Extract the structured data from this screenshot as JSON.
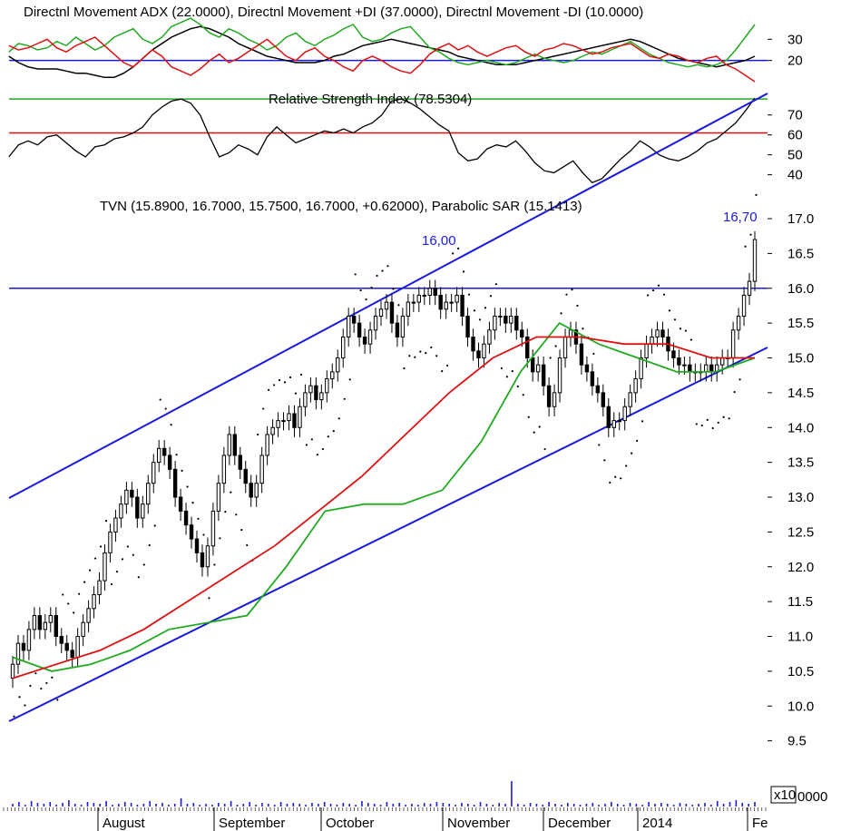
{
  "chart_data": [
    {
      "type": "line",
      "title": "Directnl Movement ADX (22.0000), Directnl Movement +DI (37.0000), Directnl Movement -DI (10.0000)",
      "ylim": [
        10,
        40
      ],
      "yticks": [
        20,
        30
      ],
      "reference_lines": [
        20
      ],
      "colors": {
        "adx": "#000000",
        "plus_di": "#22aa22",
        "minus_di": "#dd1111",
        "ref": "#1a1adc"
      },
      "series": [
        {
          "name": "ADX",
          "values": [
            22,
            19,
            17,
            16,
            16,
            16,
            15,
            14,
            14,
            13,
            12,
            12,
            14,
            17,
            21,
            25,
            28,
            31,
            33,
            35,
            36,
            35,
            33,
            31,
            28,
            26,
            24,
            22,
            21,
            20,
            19,
            19,
            19,
            20,
            22,
            23,
            25,
            27,
            28,
            29,
            30,
            29,
            28,
            27,
            26,
            25,
            24,
            22,
            21,
            20,
            19,
            18,
            18,
            18,
            19,
            20,
            21,
            22,
            23,
            24,
            25,
            26,
            27,
            28,
            29,
            30,
            29,
            27,
            25,
            23,
            21,
            20,
            19,
            18,
            17,
            18,
            19,
            20,
            22
          ]
        },
        {
          "name": "+DI",
          "values": [
            24,
            28,
            27,
            25,
            26,
            29,
            27,
            31,
            28,
            25,
            27,
            31,
            33,
            35,
            30,
            28,
            31,
            36,
            38,
            40,
            37,
            33,
            31,
            35,
            33,
            30,
            28,
            25,
            27,
            31,
            33,
            29,
            27,
            30,
            32,
            35,
            37,
            31,
            29,
            30,
            33,
            35,
            36,
            31,
            26,
            24,
            21,
            19,
            18,
            19,
            20,
            19,
            18,
            19,
            21,
            23,
            21,
            20,
            19,
            20,
            22,
            24,
            23,
            25,
            27,
            29,
            26,
            23,
            21,
            19,
            18,
            17,
            18,
            17,
            18,
            20,
            25,
            31,
            37
          ]
        },
        {
          "name": "-DI",
          "values": [
            27,
            25,
            26,
            28,
            30,
            26,
            24,
            27,
            29,
            31,
            27,
            23,
            19,
            17,
            21,
            25,
            22,
            17,
            15,
            13,
            16,
            20,
            23,
            19,
            21,
            24,
            27,
            30,
            26,
            22,
            20,
            24,
            26,
            22,
            20,
            17,
            15,
            20,
            22,
            20,
            17,
            15,
            14,
            18,
            23,
            26,
            28,
            25,
            27,
            24,
            22,
            24,
            26,
            27,
            24,
            22,
            25,
            26,
            28,
            27,
            25,
            23,
            24,
            26,
            27,
            28,
            25,
            22,
            21,
            23,
            22,
            20,
            19,
            21,
            22,
            18,
            16,
            13,
            10
          ]
        }
      ]
    },
    {
      "type": "line",
      "title": "Relative Strength Index (78.5304)",
      "ylim": [
        33,
        84
      ],
      "yticks": [
        40,
        50,
        60,
        70
      ],
      "reference_lines": [
        {
          "value": 78,
          "color": "#22aa22"
        },
        {
          "value": 61,
          "color": "#dd1111"
        }
      ],
      "series": [
        {
          "name": "RSI",
          "values": [
            49,
            55,
            57,
            55,
            59,
            60,
            56,
            52,
            49,
            54,
            55,
            58,
            59,
            61,
            64,
            70,
            74,
            77,
            78,
            76,
            70,
            59,
            49,
            51,
            55,
            53,
            50,
            59,
            64,
            60,
            56,
            58,
            60,
            62,
            61,
            63,
            61,
            64,
            66,
            70,
            77,
            78,
            76,
            73,
            69,
            65,
            62,
            51,
            47,
            48,
            53,
            55,
            54,
            57,
            52,
            46,
            42,
            41,
            44,
            47,
            41,
            36,
            38,
            43,
            48,
            52,
            57,
            54,
            50,
            48,
            47,
            49,
            52,
            56,
            58,
            62,
            66,
            72,
            78.5
          ]
        }
      ]
    },
    {
      "type": "candlestick",
      "title": "TVN (15.8900, 16.7000, 15.7500, 16.7000, +0.62000), Parabolic SAR (15.1413)",
      "ylim": [
        9.0,
        17.3
      ],
      "yticks": [
        9.5,
        10.0,
        10.5,
        11.0,
        11.5,
        12.0,
        12.5,
        13.0,
        13.5,
        14.0,
        14.5,
        15.0,
        15.5,
        16.0,
        16.5,
        17.0
      ],
      "x_labels": [
        "August",
        "September",
        "October",
        "November",
        "December",
        "2014",
        "Fe"
      ],
      "annotations": [
        {
          "text": "16,00",
          "value": 16.0
        },
        {
          "text": "16,70",
          "value": 16.7
        }
      ],
      "horizontal_line": 16.0,
      "close": [
        10.6,
        10.9,
        10.8,
        11.1,
        11.3,
        11.1,
        11.2,
        11.3,
        11.0,
        10.9,
        10.8,
        10.7,
        11.0,
        11.2,
        11.4,
        11.6,
        11.8,
        12.2,
        12.5,
        12.7,
        12.9,
        13.1,
        13.0,
        12.7,
        12.9,
        13.2,
        13.5,
        13.7,
        13.6,
        13.4,
        13.0,
        12.8,
        12.6,
        12.4,
        12.2,
        12.0,
        12.3,
        12.8,
        13.2,
        13.6,
        13.9,
        13.6,
        13.4,
        13.2,
        13.0,
        13.2,
        13.6,
        13.9,
        14.0,
        14.1,
        14.1,
        14.2,
        14.0,
        14.3,
        14.5,
        14.6,
        14.4,
        14.5,
        14.7,
        14.8,
        15.0,
        15.3,
        15.6,
        15.5,
        15.3,
        15.2,
        15.4,
        15.6,
        15.7,
        15.8,
        15.5,
        15.3,
        15.6,
        15.8,
        15.8,
        15.9,
        15.9,
        16.0,
        15.9,
        15.7,
        15.8,
        15.8,
        15.9,
        15.6,
        15.3,
        15.1,
        15.0,
        15.2,
        15.4,
        15.6,
        15.6,
        15.5,
        15.6,
        15.4,
        15.3,
        15.0,
        14.8,
        14.9,
        14.6,
        14.3,
        14.5,
        15.0,
        15.3,
        15.4,
        15.2,
        14.9,
        14.8,
        14.6,
        14.5,
        14.3,
        14.0,
        14.1,
        14.1,
        14.3,
        14.5,
        14.7,
        15.0,
        15.2,
        15.3,
        15.4,
        15.3,
        15.1,
        15.0,
        14.9,
        14.9,
        14.8,
        14.8,
        14.8,
        14.9,
        14.8,
        14.9,
        15.0,
        15.0,
        15.4,
        15.6,
        15.9,
        16.1,
        16.7
      ],
      "series": [
        {
          "name": "SMA short",
          "color": "#22aa22",
          "values": [
            10.7,
            10.5,
            10.6,
            10.8,
            11.1,
            11.2,
            11.3,
            12.0,
            12.8,
            12.9,
            12.9,
            13.1,
            13.8,
            14.8,
            15.5,
            15.2,
            15.0,
            14.8,
            14.8,
            15.0
          ]
        },
        {
          "name": "SMA long",
          "color": "#dd1111",
          "values": [
            10.4,
            10.6,
            10.8,
            11.1,
            11.5,
            11.9,
            12.3,
            12.8,
            13.3,
            13.9,
            14.5,
            15.0,
            15.3,
            15.3,
            15.2,
            15.2,
            15.0,
            15.0
          ]
        }
      ]
    },
    {
      "type": "bar",
      "title": "",
      "multiplier_label": "x10",
      "multiplier_suffix": "0000",
      "values": [
        0.3,
        0.5,
        0.2,
        0.6,
        0.4,
        0.3,
        0.5,
        0.2,
        0.4,
        0.7,
        0.3,
        0.2,
        0.5,
        0.4,
        0.3,
        0.6,
        0.2,
        0.3,
        0.5,
        0.4,
        0.2,
        0.3,
        0.6,
        0.3,
        0.4,
        0.2,
        0.3,
        0.9,
        0.3,
        0.4,
        0.2,
        0.3,
        0.2,
        0.4,
        0.3,
        0.6,
        0.2,
        0.3,
        0.5,
        0.2,
        0.4,
        0.3,
        0.2,
        0.5,
        0.3,
        0.4,
        0.3,
        0.2,
        0.4,
        0.3,
        0.5,
        0.3,
        0.2,
        0.4,
        0.3,
        0.2,
        0.6,
        0.4,
        0.3,
        0.2,
        0.5,
        0.3,
        0.4,
        0.2,
        0.3,
        0.2,
        0.4,
        0.3,
        0.5,
        0.4,
        0.3,
        0.2,
        0.4,
        0.3,
        0.2,
        0.5,
        0.3,
        0.2,
        0.4,
        0.3,
        2.8,
        0.3,
        0.2,
        0.4,
        0.3,
        0.2,
        0.5,
        0.3,
        0.2,
        0.4,
        0.3,
        0.2,
        0.3,
        0.4,
        0.2,
        0.3,
        0.5,
        0.3,
        0.2,
        0.4,
        0.3,
        0.2,
        0.5,
        0.3,
        0.4,
        0.3,
        0.2,
        0.4,
        0.3,
        0.2,
        0.3,
        0.4,
        0.2,
        0.6,
        0.3,
        0.5,
        0.7,
        0.4,
        0.3,
        0.5
      ]
    }
  ]
}
